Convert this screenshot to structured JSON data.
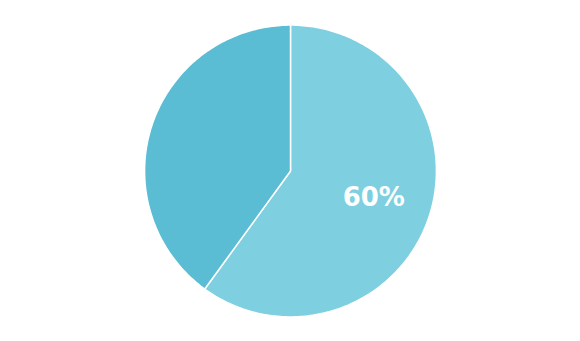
{
  "chart_data": {
    "type": "pie",
    "values": [
      60,
      40
    ],
    "colors": [
      "#7ecfe0",
      "#5bbdd4"
    ],
    "data_labels": true,
    "value_labels": [
      "60%",
      null
    ]
  }
}
